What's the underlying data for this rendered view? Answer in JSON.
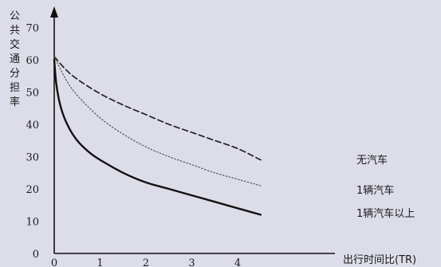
{
  "chart_data": {
    "type": "line",
    "title": "",
    "xlabel": "出行时间比(TR)",
    "ylabel": "公共交通分担率",
    "xlim": [
      0,
      4.6
    ],
    "ylim": [
      0,
      70
    ],
    "x_ticks": [
      "0",
      "1",
      "2",
      "3",
      "4"
    ],
    "y_ticks": [
      "0",
      "10",
      "20",
      "30",
      "40",
      "50",
      "60",
      "70"
    ],
    "grid": false,
    "legend": "inline labels at right end of lines",
    "series": [
      {
        "name": "无汽车",
        "style": "dashed",
        "x": [
          0,
          0.25,
          0.5,
          1,
          1.5,
          2,
          2.5,
          3,
          3.5,
          4,
          4.5
        ],
        "y": [
          61,
          57,
          54,
          49.5,
          46,
          43,
          40,
          37.5,
          35,
          32.5,
          29
        ]
      },
      {
        "name": "1辆汽车",
        "style": "dotted",
        "x": [
          0,
          0.25,
          0.5,
          1,
          1.5,
          2,
          2.5,
          3,
          3.5,
          4,
          4.5
        ],
        "y": [
          61,
          54,
          49,
          42,
          37,
          33,
          30,
          27.5,
          25,
          23,
          21
        ]
      },
      {
        "name": "1辆汽车以上",
        "style": "solid",
        "x": [
          0,
          0.05,
          0.15,
          0.3,
          0.5,
          0.75,
          1,
          1.5,
          2,
          2.5,
          3,
          3.5,
          4,
          4.5
        ],
        "y": [
          60,
          52,
          45,
          39.5,
          35,
          31.5,
          29,
          25,
          22,
          20,
          18,
          16,
          14,
          12
        ]
      }
    ]
  }
}
